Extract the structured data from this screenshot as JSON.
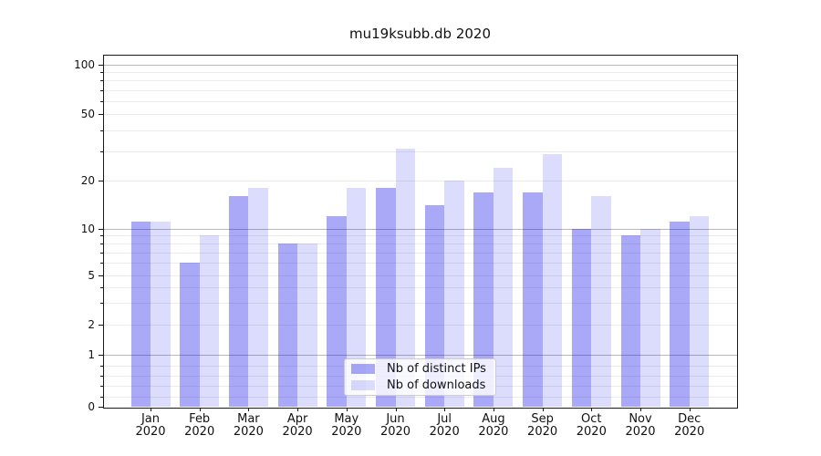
{
  "title": "mu19ksubb.db 2020",
  "legend": {
    "items": [
      {
        "label": "Nb of distinct IPs",
        "color": "#a9a9f7",
        "color_rgba": "rgba(9,9,232,0.35)"
      },
      {
        "label": "Nb of downloads",
        "color": "#dcdcfb",
        "color_rgba": "rgba(9,9,232,0.14)"
      }
    ]
  },
  "chart_data": {
    "type": "bar",
    "title": "mu19ksubb.db 2020",
    "categories": [
      "Jan",
      "Feb",
      "Mar",
      "Apr",
      "May",
      "Jun",
      "Jul",
      "Aug",
      "Sep",
      "Oct",
      "Nov",
      "Dec"
    ],
    "category_year": "2020",
    "series": [
      {
        "name": "Nb of distinct IPs",
        "color": "#a9a9f7",
        "values": [
          11,
          6,
          16,
          8,
          12,
          18,
          14,
          17,
          17,
          10,
          9,
          11
        ]
      },
      {
        "name": "Nb of downloads",
        "color": "#dcdcfb",
        "values": [
          11,
          9,
          18,
          8,
          18,
          31,
          20,
          24,
          29,
          16,
          10,
          12
        ]
      }
    ],
    "xlabel": "",
    "ylabel": "",
    "yscale": "symlog",
    "yticks": [
      0,
      1,
      2,
      5,
      10,
      20,
      50,
      100
    ],
    "minor_yticks": [
      0.2,
      0.4,
      0.6,
      0.8,
      3,
      4,
      6,
      7,
      8,
      9,
      30,
      40,
      60,
      70,
      80,
      90
    ],
    "ylim": [
      0,
      115
    ],
    "grid": true,
    "legend_position": "lower center"
  }
}
